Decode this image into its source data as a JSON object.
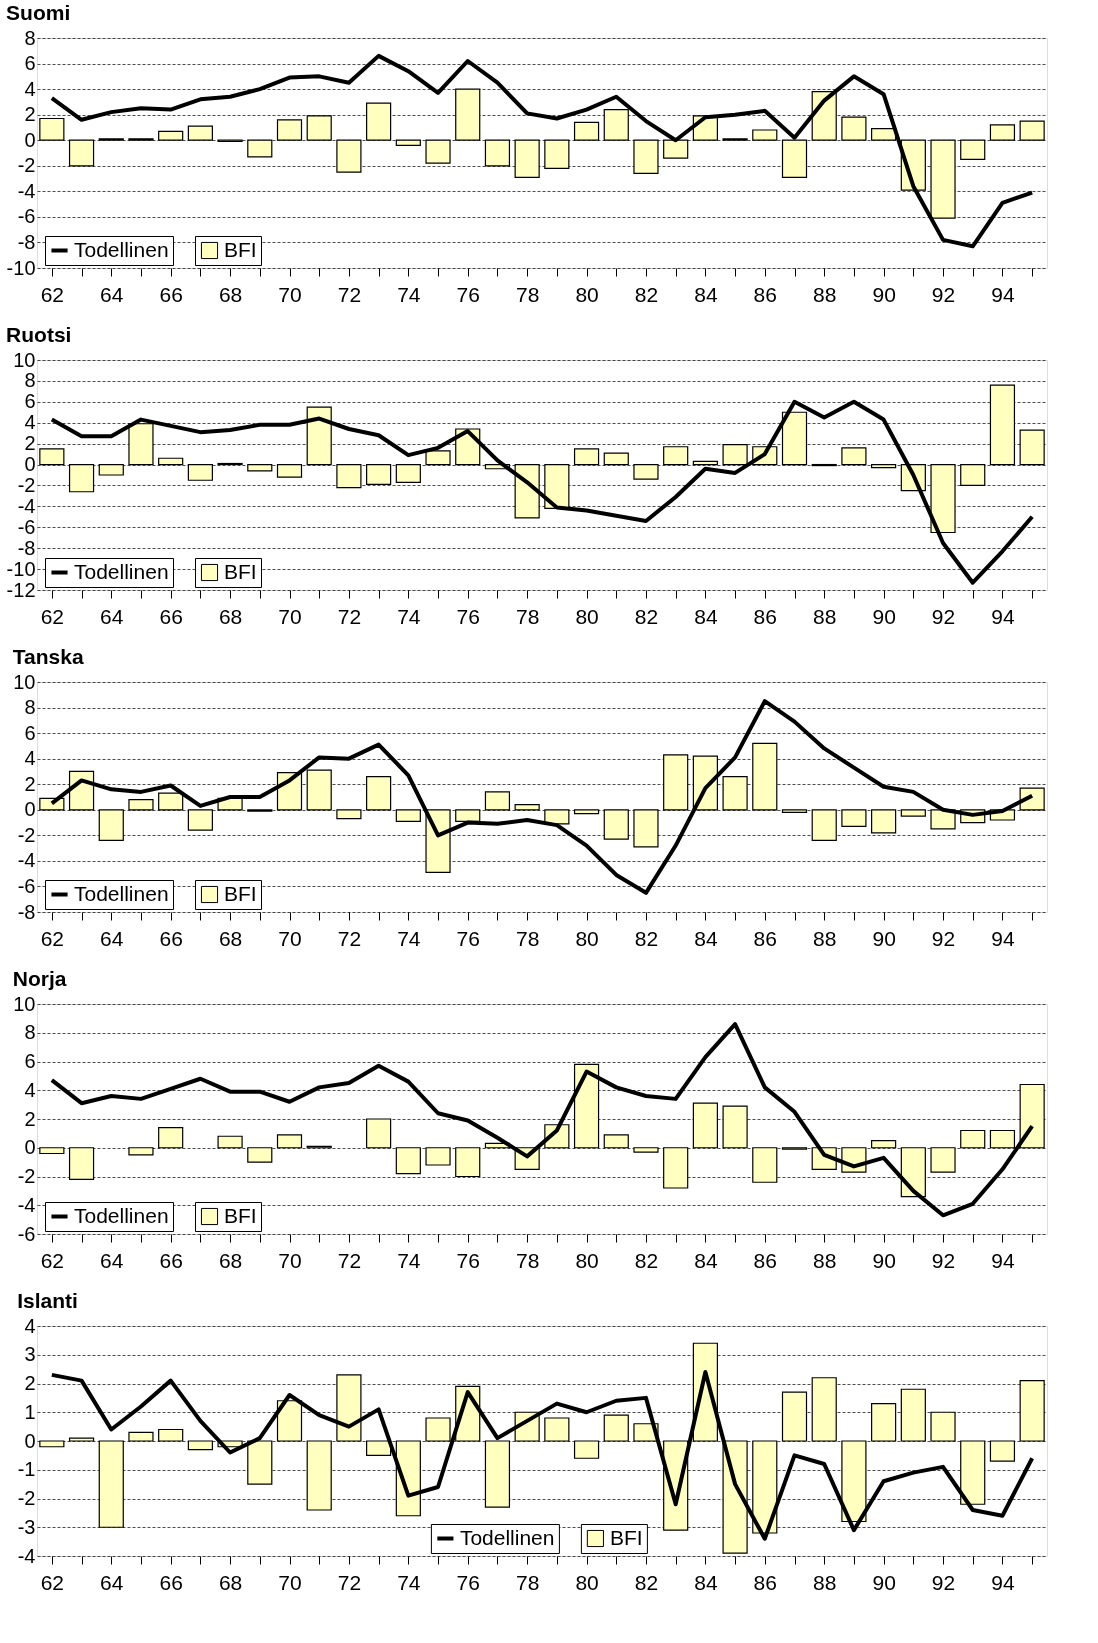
{
  "chart_data": [
    {
      "type": "bar",
      "title": "Suomi",
      "categories": [
        "62",
        null,
        "64",
        null,
        "66",
        null,
        "68",
        null,
        "70",
        null,
        "72",
        null,
        "74",
        null,
        "76",
        null,
        "78",
        null,
        "80",
        null,
        "82",
        null,
        "84",
        null,
        "86",
        null,
        "88",
        null,
        "90",
        null,
        "92",
        null,
        "94",
        null
      ],
      "ylim": [
        -10,
        8
      ],
      "yticks": [
        -10,
        -8,
        -6,
        -4,
        -2,
        0,
        2,
        4,
        6,
        8
      ],
      "grid": "y",
      "legend": "bottom left",
      "series": [
        {
          "name": "Todellinen",
          "type": "line",
          "color": "#000000",
          "values": [
            3.3,
            1.6,
            2.2,
            2.5,
            2.4,
            3.2,
            3.4,
            4.0,
            4.9,
            5.0,
            4.5,
            6.6,
            5.4,
            3.7,
            6.2,
            4.5,
            2.1,
            1.7,
            2.4,
            3.4,
            1.5,
            0.0,
            1.8,
            2.0,
            2.3,
            0.2,
            3.1,
            5.0,
            3.6,
            -3.6,
            -7.8,
            -8.3,
            -4.9,
            -4.1
          ]
        },
        {
          "name": "BFI",
          "color": "#ffffc0",
          "values": [
            1.7,
            -2.0,
            0.1,
            0.1,
            0.7,
            1.1,
            -0.1,
            -1.3,
            1.6,
            1.9,
            -2.5,
            2.9,
            -0.4,
            -1.8,
            4.0,
            -2.0,
            -2.9,
            -2.2,
            1.4,
            2.4,
            -2.6,
            -1.4,
            1.9,
            0.1,
            0.8,
            -2.9,
            3.8,
            1.8,
            0.9,
            -3.9,
            -6.1,
            -1.5,
            1.2,
            1.5
          ]
        }
      ]
    },
    {
      "type": "bar",
      "title": "Ruotsi",
      "categories": [
        "62",
        null,
        "64",
        null,
        "66",
        null,
        "68",
        null,
        "70",
        null,
        "72",
        null,
        "74",
        null,
        "76",
        null,
        "78",
        null,
        "80",
        null,
        "82",
        null,
        "84",
        null,
        "86",
        null,
        "88",
        null,
        "90",
        null,
        "92",
        null,
        "94",
        null
      ],
      "ylim": [
        -12,
        10
      ],
      "yticks": [
        -12,
        -10,
        -8,
        -6,
        -4,
        -2,
        0,
        2,
        4,
        6,
        8,
        10
      ],
      "grid": "y",
      "legend": "bottom left",
      "series": [
        {
          "name": "Todellinen",
          "type": "line",
          "color": "#000000",
          "values": [
            4.3,
            2.7,
            2.7,
            4.3,
            3.7,
            3.1,
            3.3,
            3.8,
            3.8,
            4.4,
            3.4,
            2.8,
            0.9,
            1.6,
            3.2,
            0.4,
            -1.7,
            -4.1,
            -4.4,
            -4.9,
            -5.4,
            -3.1,
            -0.4,
            -0.8,
            1.0,
            6.0,
            4.5,
            6.0,
            4.3,
            -1.0,
            -7.5,
            -11.3,
            -8.3,
            -5.0
          ]
        },
        {
          "name": "BFI",
          "color": "#ffffc0",
          "values": [
            1.5,
            -2.6,
            -1.0,
            3.9,
            0.6,
            -1.5,
            0.1,
            -0.6,
            -1.2,
            5.5,
            -2.2,
            -1.9,
            -1.7,
            1.3,
            3.4,
            -0.4,
            -5.1,
            -4.2,
            1.5,
            1.1,
            -1.4,
            1.7,
            0.3,
            1.9,
            1.7,
            5.0,
            -0.1,
            1.6,
            -0.3,
            -2.5,
            -6.5,
            -2.0,
            7.6,
            3.3
          ]
        }
      ]
    },
    {
      "type": "bar",
      "title": "Tanska",
      "categories": [
        "62",
        null,
        "64",
        null,
        "66",
        null,
        "68",
        null,
        "70",
        null,
        "72",
        null,
        "74",
        null,
        "76",
        null,
        "78",
        null,
        "80",
        null,
        "82",
        null,
        "84",
        null,
        "86",
        null,
        "88",
        null,
        "90",
        null,
        "92",
        null,
        "94",
        null
      ],
      "ylim": [
        -8,
        10
      ],
      "yticks": [
        -8,
        -6,
        -4,
        -2,
        0,
        2,
        4,
        6,
        8,
        10
      ],
      "grid": "y",
      "legend": "bottom left",
      "series": [
        {
          "name": "Todellinen",
          "type": "line",
          "color": "#000000",
          "values": [
            0.5,
            2.3,
            1.6,
            1.4,
            1.9,
            0.3,
            1.0,
            1.0,
            2.3,
            4.1,
            4.0,
            5.1,
            2.7,
            -2.0,
            -1.0,
            -1.1,
            -0.8,
            -1.2,
            -2.8,
            -5.1,
            -6.5,
            -2.8,
            1.7,
            4.1,
            8.5,
            6.9,
            4.8,
            3.3,
            1.8,
            1.4,
            0.0,
            -0.4,
            -0.1,
            1.1
          ]
        },
        {
          "name": "BFI",
          "color": "#ffffc0",
          "values": [
            0.9,
            3.0,
            -2.4,
            0.8,
            1.3,
            -1.6,
            0.9,
            -0.1,
            2.9,
            3.1,
            -0.7,
            2.6,
            -0.9,
            -4.9,
            -0.9,
            1.4,
            0.4,
            -1.1,
            -0.3,
            -2.3,
            -2.9,
            4.3,
            4.2,
            2.6,
            5.2,
            -0.2,
            -2.4,
            -1.3,
            -1.8,
            -0.5,
            -1.5,
            -1.0,
            -0.8,
            1.7
          ]
        }
      ]
    },
    {
      "type": "bar",
      "title": "Norja",
      "categories": [
        "62",
        null,
        "64",
        null,
        "66",
        null,
        "68",
        null,
        "70",
        null,
        "72",
        null,
        "74",
        null,
        "76",
        null,
        "78",
        null,
        "80",
        null,
        "82",
        null,
        "84",
        null,
        "86",
        null,
        "88",
        null,
        "90",
        null,
        "92",
        null,
        "94",
        null
      ],
      "ylim": [
        -6,
        10
      ],
      "yticks": [
        -6,
        -4,
        -2,
        0,
        2,
        4,
        6,
        8,
        10
      ],
      "grid": "y",
      "legend": "bottom left",
      "series": [
        {
          "name": "Todellinen",
          "type": "line",
          "color": "#000000",
          "values": [
            4.7,
            3.1,
            3.6,
            3.4,
            4.1,
            4.8,
            3.9,
            3.9,
            3.2,
            4.2,
            4.5,
            5.7,
            4.6,
            2.4,
            1.9,
            0.7,
            -0.6,
            1.2,
            5.3,
            4.2,
            3.6,
            3.4,
            6.3,
            8.6,
            4.2,
            2.5,
            -0.5,
            -1.3,
            -0.7,
            -3.0,
            -4.7,
            -3.9,
            -1.5,
            1.5
          ]
        },
        {
          "name": "BFI",
          "color": "#ffffc0",
          "values": [
            -0.4,
            -2.2,
            0.0,
            -0.5,
            1.4,
            0.0,
            0.8,
            -1.0,
            0.9,
            0.1,
            0.0,
            2.0,
            -1.8,
            -1.2,
            -2.0,
            0.3,
            -1.5,
            1.6,
            5.8,
            0.9,
            -0.3,
            -2.8,
            3.1,
            2.9,
            -2.4,
            -0.1,
            -1.5,
            -1.7,
            0.5,
            -3.4,
            -1.7,
            1.2,
            1.2,
            4.4
          ]
        }
      ]
    },
    {
      "type": "bar",
      "title": "Islanti",
      "categories": [
        "62",
        null,
        "64",
        null,
        "66",
        null,
        "68",
        null,
        "70",
        null,
        "72",
        null,
        "74",
        null,
        "76",
        null,
        "78",
        null,
        "80",
        null,
        "82",
        null,
        "84",
        null,
        "86",
        null,
        "88",
        null,
        "90",
        null,
        "92",
        null,
        "94",
        null
      ],
      "ylim": [
        -4,
        4
      ],
      "yticks": [
        -4,
        -3,
        -2,
        -1,
        0,
        1,
        2,
        3,
        4
      ],
      "grid": "y",
      "legend": "bottom",
      "series": [
        {
          "name": "Todellinen",
          "type": "line",
          "color": "#000000",
          "values": [
            2.3,
            2.1,
            0.4,
            1.2,
            2.1,
            0.7,
            -0.4,
            0.1,
            1.6,
            0.9,
            0.5,
            1.1,
            -1.9,
            -1.6,
            1.7,
            0.1,
            0.7,
            1.3,
            1.0,
            1.4,
            1.5,
            -2.2,
            2.4,
            -1.5,
            -3.4,
            -0.5,
            -0.8,
            -3.1,
            -1.4,
            -1.1,
            -0.9,
            -2.4,
            -2.6,
            -0.6
          ]
        },
        {
          "name": "BFI",
          "color": "#ffffc0",
          "values": [
            -0.2,
            0.1,
            -3.0,
            0.3,
            0.4,
            -0.3,
            -0.2,
            -1.5,
            1.4,
            -2.4,
            2.3,
            -0.5,
            -2.6,
            0.8,
            1.9,
            -2.3,
            1.0,
            0.8,
            -0.6,
            0.9,
            0.6,
            -3.1,
            3.4,
            -3.9,
            -3.2,
            1.7,
            2.2,
            -2.8,
            1.3,
            1.8,
            1.0,
            -2.2,
            -0.7,
            2.1
          ]
        }
      ]
    }
  ]
}
